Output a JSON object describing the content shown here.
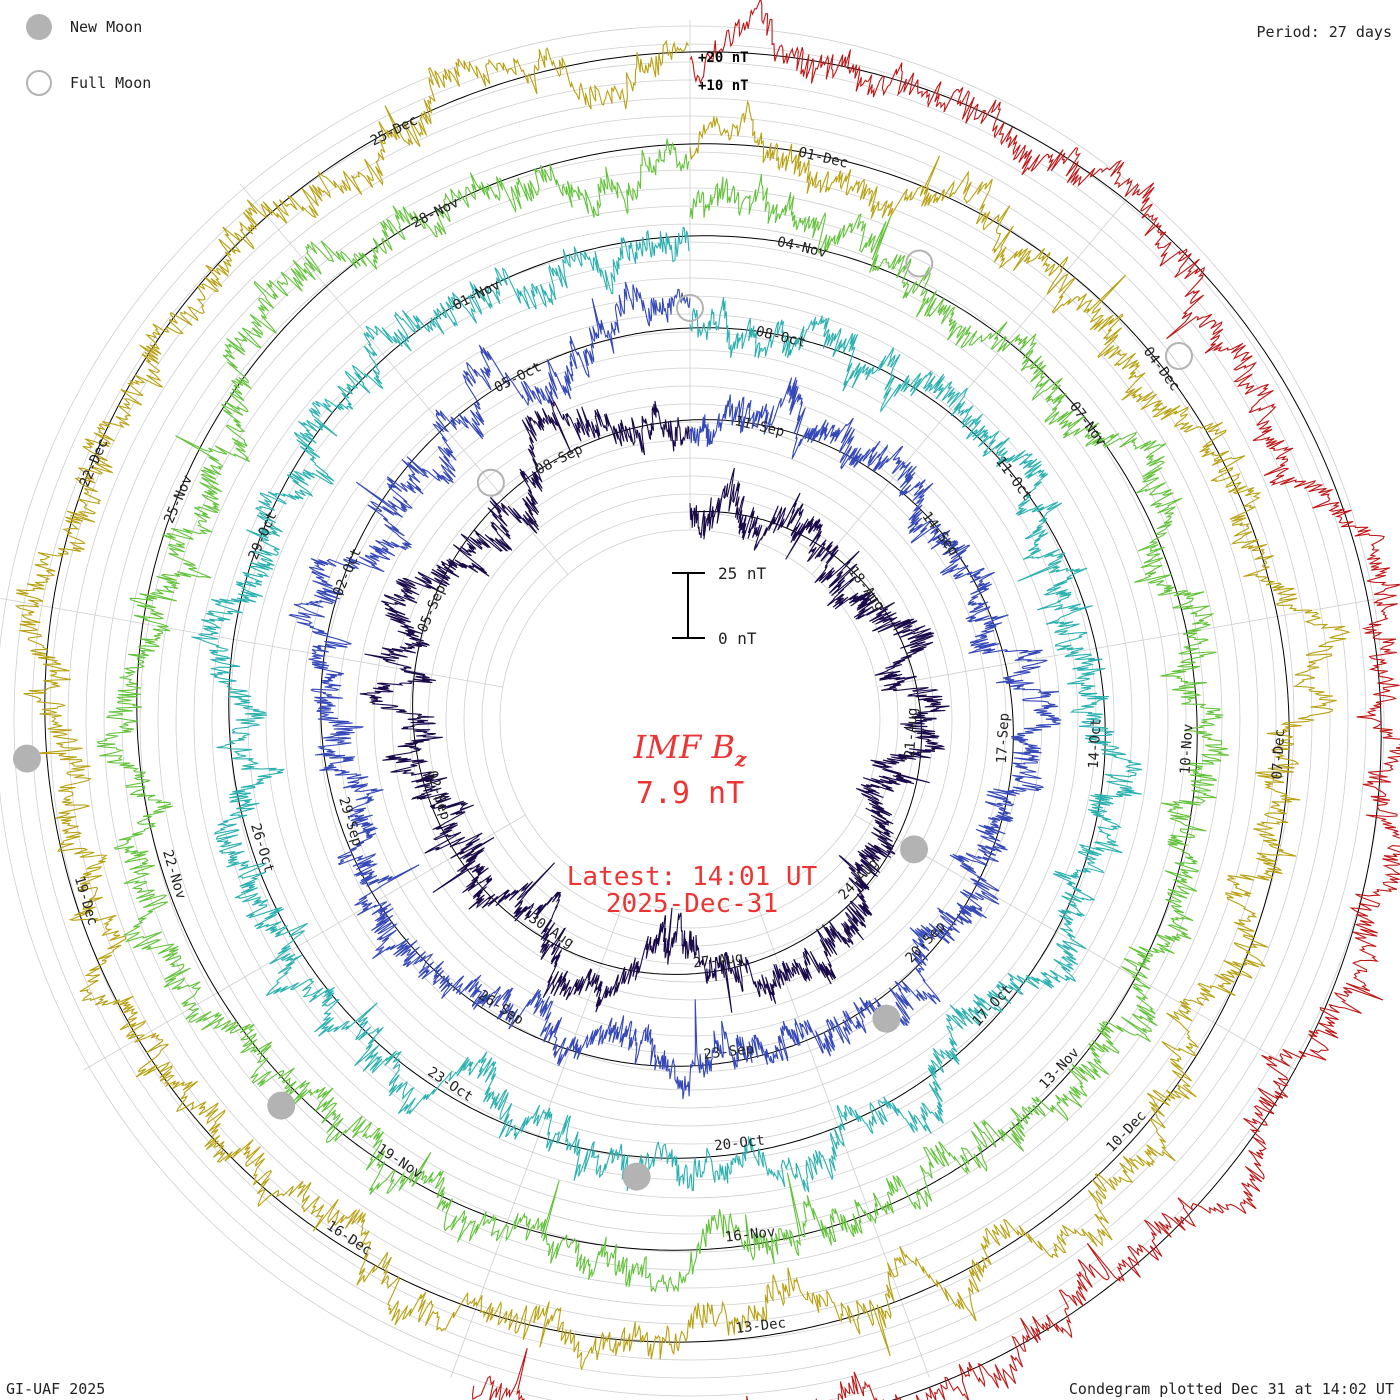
{
  "legend": {
    "new_moon_label": "New Moon",
    "full_moon_label": "Full Moon"
  },
  "period_label": "Period: 27 days",
  "footer": {
    "left": "GI-UAF 2025",
    "right": "Condegram plotted Dec 31 at 14:02 UT"
  },
  "colors": {
    "grid": "#cfcfcf",
    "baseline": "#000000",
    "moon": "#b3b3b3",
    "title": "#ee3333"
  },
  "chart_data": {
    "type": "line",
    "subtype": "condegram-spiral",
    "period_days": 27,
    "title_main": "IMF B",
    "title_sub": "z",
    "current_value": "7.9 nT",
    "latest_line1": "Latest: 14:01 UT",
    "latest_line2": "2025-Dec-31",
    "scale_bar": {
      "top_label": "25 nT",
      "bottom_label": "0 nT",
      "span_nT": 25
    },
    "ring_scale_labels": [
      "+20 nT",
      "+10 nT"
    ],
    "grid": true,
    "series": [
      {
        "name": "",
        "color": "#1a0a4a",
        "start": "2025-08-14",
        "ticks": [
          "18-Aug",
          "21-Aug",
          "24-Aug",
          "27-Aug",
          "30-Aug",
          "02-Sep",
          "05-Sep",
          "08-Sep",
          "11-Sep"
        ]
      },
      {
        "name": "",
        "color": "#3548b8",
        "start": "2025-09-10",
        "ticks": [
          "14-Sep",
          "17-Sep",
          "20-Sep",
          "23-Sep",
          "26-Sep",
          "29-Sep",
          "02-Oct",
          "05-Oct",
          "08-Oct"
        ]
      },
      {
        "name": "",
        "color": "#2ab0b0",
        "start": "2025-10-07",
        "ticks": [
          "11-Oct",
          "14-Oct",
          "17-Oct",
          "20-Oct",
          "23-Oct",
          "26-Oct",
          "29-Oct",
          "01-Nov",
          "04-Nov"
        ]
      },
      {
        "name": "",
        "color": "#62c23a",
        "start": "2025-11-03",
        "ticks": [
          "07-Nov",
          "10-Nov",
          "13-Nov",
          "16-Nov",
          "19-Nov",
          "22-Nov",
          "25-Nov",
          "28-Nov",
          "01-Dec"
        ]
      },
      {
        "name": "",
        "color": "#b8a010",
        "start": "2025-11-30",
        "ticks": [
          "04-Dec",
          "07-Dec",
          "10-Dec",
          "13-Dec",
          "16-Dec",
          "19-Dec",
          "22-Dec",
          "25-Dec"
        ]
      },
      {
        "name": "",
        "color": "#c01515",
        "start": "2025-12-27",
        "ticks": []
      }
    ],
    "new_moons": [
      "2025-08-23",
      "2025-09-21",
      "2025-10-21",
      "2025-11-20",
      "2025-12-20"
    ],
    "full_moons": [
      "2025-09-07",
      "2025-10-07",
      "2025-11-05",
      "2025-12-04"
    ]
  }
}
